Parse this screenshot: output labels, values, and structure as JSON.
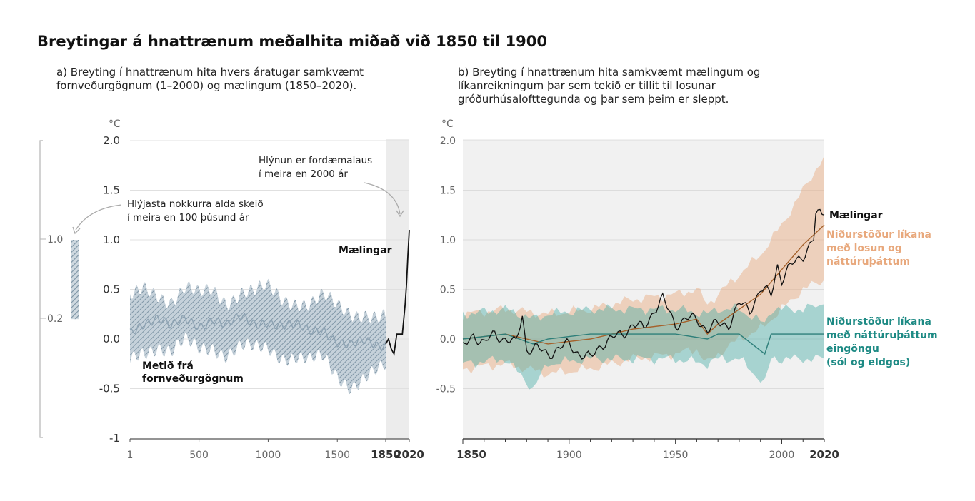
{
  "title": "Breytingar á hnattrænum meðalhita miðað við 1850 til 1900",
  "panel_a": {
    "subtitle": "a) Breyting í hnattrænum hita hvers áratugar samkvæmt\nfornveðurgögnum (1–2000) og mælingum (1850–2020).",
    "unit": "°C",
    "ann_warmest_1": "Hlýjasta nokkurra alda skeið",
    "ann_warmest_2": "í meira en 100 þúsund ár",
    "ann_unprec_1": "Hlýnun er fordæmalaus",
    "ann_unprec_2": "í meira en 2000 ár",
    "label_obs": "Mælingar",
    "label_paleo_1": "Metið frá",
    "label_paleo_2": "fornveðurgögnum",
    "range_top": "1.0",
    "range_bottom": "0.2"
  },
  "panel_b": {
    "subtitle": "b) Breyting í hnattrænum hita samkvæmt mælingum og\nlíkanreikningum þar sem tekið er tillit til losunar\ngróðurhúsalofttegunda og þar sem þeim er sleppt.",
    "unit": "°C",
    "label_obs": "Mælingar",
    "label_hum_1": "Niðurstöður líkana",
    "label_hum_2": "með losun og",
    "label_hum_3": "náttúruþáttum",
    "label_nat_1": "Niðurstöður líkana",
    "label_nat_2": "með náttúruþáttum",
    "label_nat_3": "eingöngu",
    "label_nat_4": "(sól og eldgos)"
  },
  "colors": {
    "paleo": "#8fa4b4",
    "obs": "#111111",
    "human": "#e8a87c",
    "human_line": "#a5612b",
    "natural": "#3aa8a0",
    "natural_line": "#2e7f7a",
    "natural_label": "#1d8a84",
    "human_label": "#e8a87c",
    "recent_shade": "#ececec"
  },
  "chart_data": [
    {
      "type": "area",
      "panel": "a",
      "title": "Breyting í hnattrænum hita hvers áratugar",
      "ylabel": "°C",
      "ylim": [
        -1,
        2
      ],
      "y_ticks": [
        "2.0",
        "1.5",
        "1.0",
        "0.5",
        "0.0",
        "-0.5",
        "-1"
      ],
      "x_ticks": [
        "1",
        "500",
        "1000",
        "1500",
        "1850",
        "2020"
      ],
      "xlim": [
        1,
        2020
      ],
      "series": [
        {
          "name": "Metið frá fornveðurgögnum",
          "x": [
            1,
            100,
            200,
            300,
            400,
            500,
            600,
            700,
            800,
            900,
            1000,
            1100,
            1200,
            1300,
            1400,
            1500,
            1600,
            1700,
            1800,
            1850
          ],
          "values": [
            0.1,
            0.18,
            0.2,
            0.1,
            0.2,
            0.15,
            0.22,
            0.12,
            0.2,
            0.15,
            0.2,
            0.15,
            0.12,
            0.05,
            0.1,
            0.0,
            -0.05,
            -0.05,
            -0.1,
            -0.05
          ],
          "lower": [
            -0.15,
            -0.1,
            -0.05,
            -0.15,
            -0.05,
            -0.1,
            -0.05,
            -0.15,
            -0.1,
            -0.12,
            -0.08,
            -0.15,
            -0.18,
            -0.25,
            -0.2,
            -0.35,
            -0.45,
            -0.4,
            -0.35,
            -0.3
          ],
          "upper": [
            0.42,
            0.5,
            0.48,
            0.4,
            0.5,
            0.42,
            0.5,
            0.4,
            0.48,
            0.45,
            0.5,
            0.42,
            0.4,
            0.35,
            0.4,
            0.32,
            0.28,
            0.28,
            0.2,
            0.2
          ]
        },
        {
          "name": "Mælingar",
          "x": [
            1850,
            1870,
            1890,
            1910,
            1930,
            1950,
            1970,
            1990,
            2000,
            2010,
            2020
          ],
          "values": [
            -0.05,
            0.0,
            -0.1,
            -0.15,
            0.05,
            0.05,
            0.05,
            0.35,
            0.55,
            0.85,
            1.1
          ]
        }
      ],
      "range_bar": {
        "low": 0.2,
        "high": 1.0
      }
    },
    {
      "type": "line",
      "panel": "b",
      "title": "Breyting í hnattrænum hita samkvæmt mælingum og líkanreikningum",
      "ylabel": "°C",
      "ylim": [
        -1,
        2
      ],
      "y_ticks": [
        "2.0",
        "1.5",
        "1.0",
        "0.5",
        "0.0",
        "-0.5"
      ],
      "x_ticks": [
        "1850",
        "1900",
        "1950",
        "2000",
        "2020"
      ],
      "xlim": [
        1850,
        2020
      ],
      "series": [
        {
          "name": "Mælingar",
          "x": [
            1850,
            1855,
            1860,
            1865,
            1870,
            1875,
            1878,
            1880,
            1885,
            1890,
            1895,
            1900,
            1905,
            1910,
            1915,
            1920,
            1925,
            1930,
            1935,
            1940,
            1944,
            1950,
            1955,
            1960,
            1965,
            1970,
            1975,
            1980,
            1985,
            1990,
            1995,
            1998,
            2000,
            2005,
            2010,
            2015,
            2016,
            2020
          ],
          "values": [
            -0.1,
            0.05,
            -0.05,
            0.05,
            0.0,
            -0.05,
            0.25,
            -0.1,
            -0.1,
            -0.15,
            -0.1,
            -0.05,
            -0.15,
            -0.2,
            -0.05,
            0.0,
            0.05,
            0.15,
            0.1,
            0.3,
            0.4,
            0.15,
            0.2,
            0.2,
            0.1,
            0.15,
            0.15,
            0.35,
            0.3,
            0.5,
            0.45,
            0.75,
            0.6,
            0.75,
            0.85,
            1.0,
            1.25,
            1.25
          ]
        },
        {
          "name": "Niðurstöður líkana með losun og náttúruþáttum",
          "x": [
            1850,
            1870,
            1890,
            1910,
            1930,
            1950,
            1960,
            1965,
            1970,
            1980,
            1990,
            2000,
            2010,
            2020
          ],
          "values": [
            0.0,
            0.05,
            -0.05,
            0.0,
            0.1,
            0.15,
            0.2,
            0.05,
            0.15,
            0.3,
            0.45,
            0.7,
            0.95,
            1.15
          ],
          "lower": [
            -0.3,
            -0.25,
            -0.35,
            -0.3,
            -0.2,
            -0.15,
            -0.1,
            -0.25,
            -0.15,
            0.0,
            0.1,
            0.3,
            0.5,
            0.6
          ],
          "upper": [
            0.25,
            0.3,
            0.25,
            0.3,
            0.4,
            0.45,
            0.5,
            0.35,
            0.45,
            0.65,
            0.85,
            1.15,
            1.5,
            1.85
          ]
        },
        {
          "name": "Niðurstöður líkana með náttúruþáttum eingöngu",
          "x": [
            1850,
            1870,
            1883,
            1890,
            1910,
            1930,
            1950,
            1965,
            1970,
            1980,
            1992,
            1995,
            2000,
            2010,
            2020
          ],
          "values": [
            0.0,
            0.05,
            -0.05,
            0.0,
            0.05,
            0.05,
            0.05,
            0.0,
            0.05,
            0.05,
            -0.15,
            0.05,
            0.05,
            0.05,
            0.05
          ],
          "lower": [
            -0.25,
            -0.2,
            -0.5,
            -0.25,
            -0.2,
            -0.2,
            -0.2,
            -0.25,
            -0.2,
            -0.2,
            -0.45,
            -0.2,
            -0.2,
            -0.2,
            -0.2
          ],
          "upper": [
            0.25,
            0.3,
            0.2,
            0.25,
            0.3,
            0.3,
            0.3,
            0.25,
            0.3,
            0.3,
            0.15,
            0.3,
            0.3,
            0.3,
            0.35
          ]
        }
      ]
    }
  ]
}
